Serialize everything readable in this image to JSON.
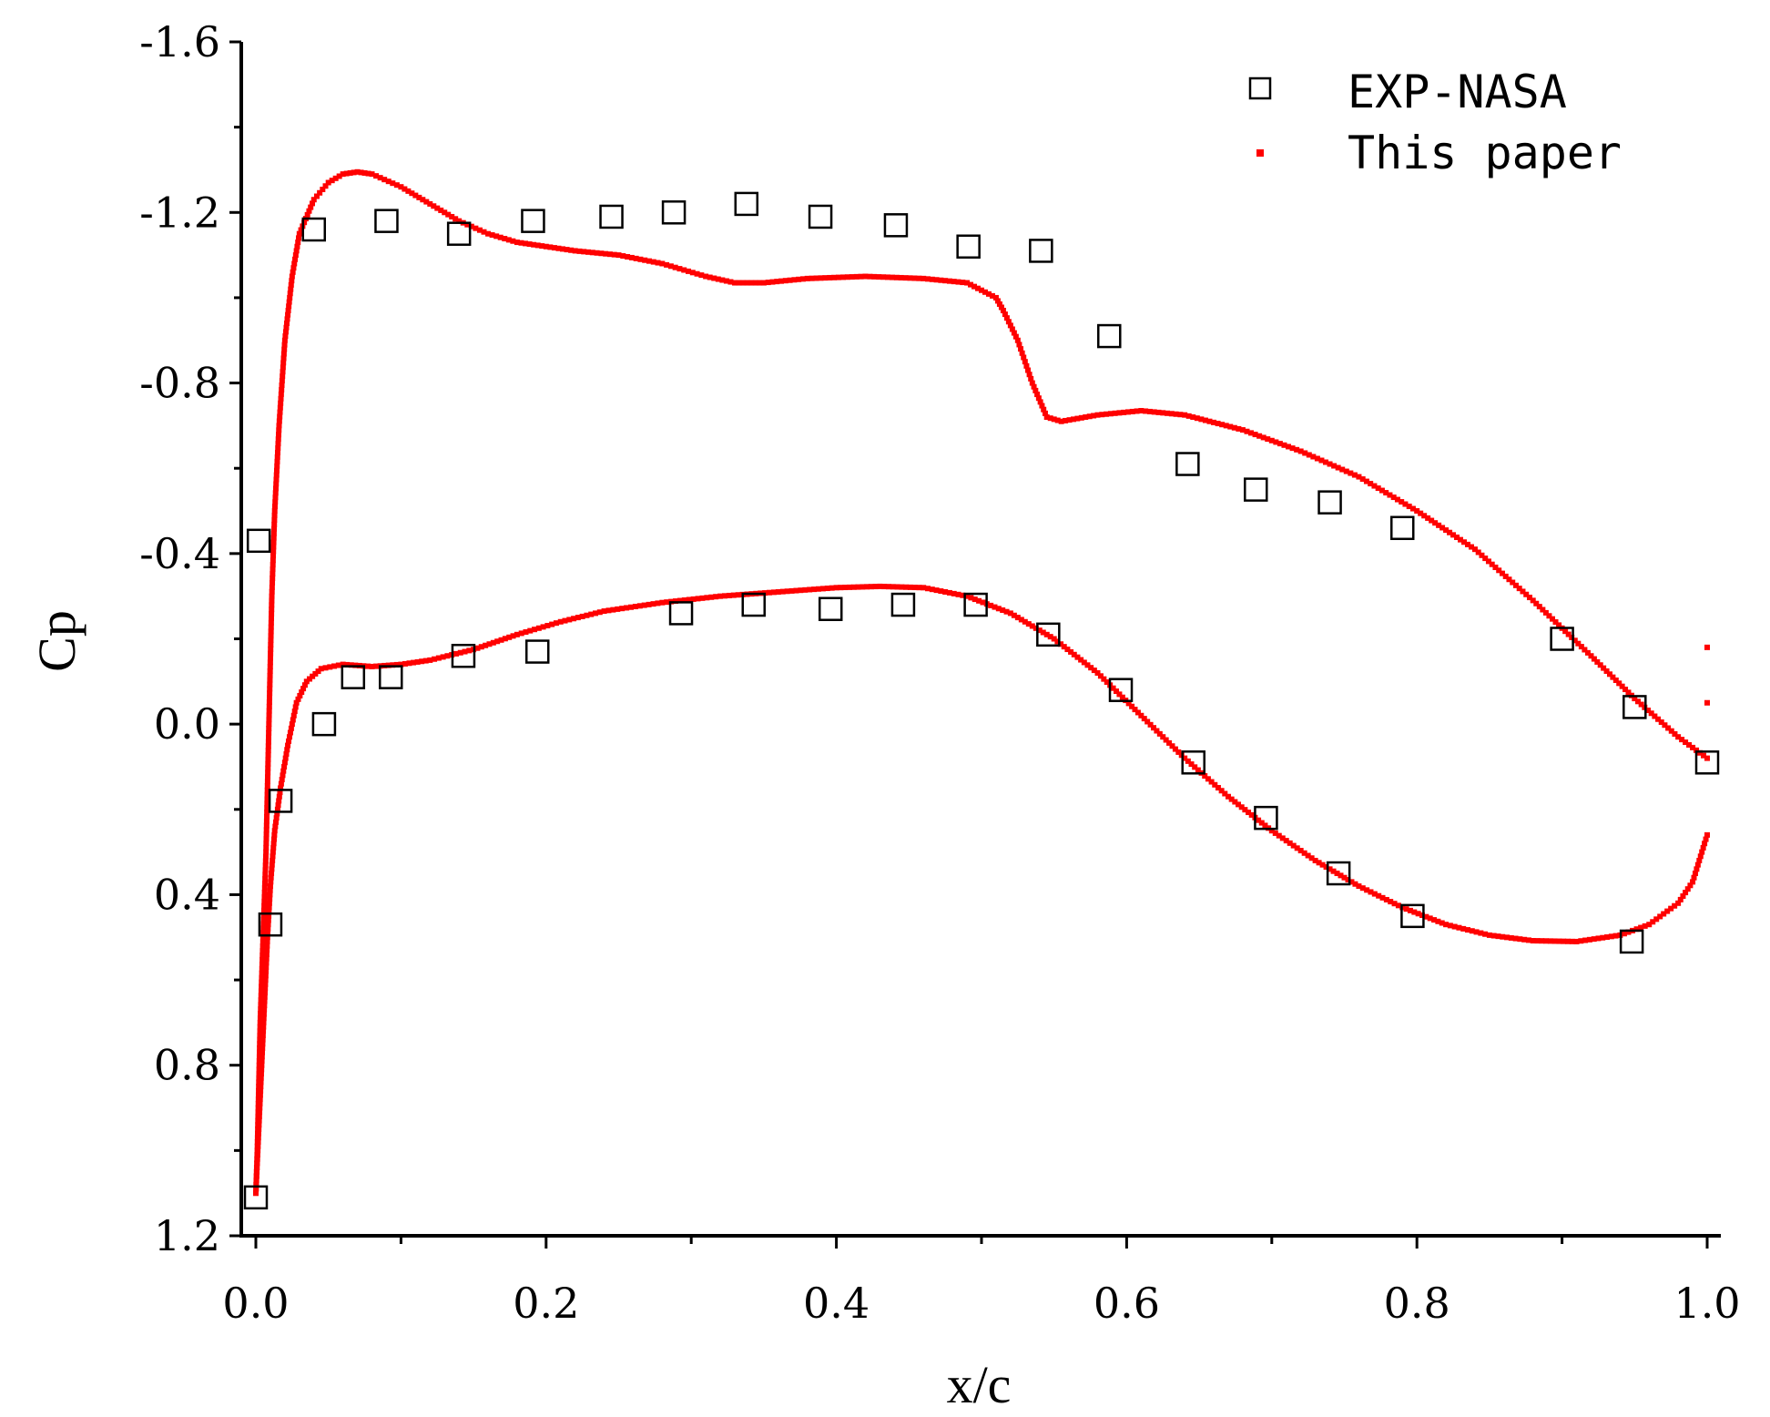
{
  "chart_data": {
    "type": "scatter",
    "title": "",
    "xlabel": "x/c",
    "ylabel": "Cp",
    "xlim": [
      -0.01,
      1.01
    ],
    "ylim": [
      1.2,
      -1.6
    ],
    "x_ticks": [
      0.0,
      0.2,
      0.4,
      0.6,
      0.8,
      1.0
    ],
    "x_tick_labels": [
      "0.0",
      "0.2",
      "0.4",
      "0.6",
      "0.8",
      "1.0"
    ],
    "y_ticks": [
      -1.6,
      -1.2,
      -0.8,
      -0.4,
      0.0,
      0.4,
      0.8,
      1.2
    ],
    "y_tick_labels": [
      "-1.6",
      "-1.2",
      "-0.8",
      "-0.4",
      "0.0",
      "0.4",
      "0.8",
      "1.2"
    ],
    "y_inverted": true,
    "grid": false,
    "legend_position": "top-right",
    "colors": {
      "exp": "#000000",
      "calc": "#ff0000"
    },
    "series": [
      {
        "name": "EXP-NASA",
        "marker": "open-square",
        "upper": [
          [
            0.002,
            -0.43
          ],
          [
            0.04,
            -1.16
          ],
          [
            0.09,
            -1.18
          ],
          [
            0.14,
            -1.15
          ],
          [
            0.191,
            -1.18
          ],
          [
            0.245,
            -1.19
          ],
          [
            0.288,
            -1.2
          ],
          [
            0.338,
            -1.22
          ],
          [
            0.389,
            -1.19
          ],
          [
            0.441,
            -1.17
          ],
          [
            0.491,
            -1.12
          ],
          [
            0.541,
            -1.11
          ],
          [
            0.588,
            -0.91
          ],
          [
            0.642,
            -0.61
          ],
          [
            0.689,
            -0.55
          ],
          [
            0.74,
            -0.52
          ],
          [
            0.79,
            -0.46
          ],
          [
            0.9,
            -0.2
          ],
          [
            0.95,
            -0.04
          ],
          [
            1.0,
            0.09
          ]
        ],
        "lower": [
          [
            0.0,
            1.11
          ],
          [
            0.01,
            0.47
          ],
          [
            0.017,
            0.18
          ],
          [
            0.047,
            0.0
          ],
          [
            0.067,
            -0.11
          ],
          [
            0.093,
            -0.11
          ],
          [
            0.143,
            -0.16
          ],
          [
            0.194,
            -0.17
          ],
          [
            0.293,
            -0.26
          ],
          [
            0.343,
            -0.28
          ],
          [
            0.396,
            -0.27
          ],
          [
            0.446,
            -0.28
          ],
          [
            0.496,
            -0.28
          ],
          [
            0.546,
            -0.21
          ],
          [
            0.596,
            -0.08
          ],
          [
            0.646,
            0.09
          ],
          [
            0.696,
            0.22
          ],
          [
            0.746,
            0.35
          ],
          [
            0.797,
            0.45
          ],
          [
            0.948,
            0.51
          ]
        ]
      },
      {
        "name": "This paper",
        "marker": "small-dot",
        "upper": [
          [
            0.0,
            1.1
          ],
          [
            0.001,
            1.0
          ],
          [
            0.002,
            0.85
          ],
          [
            0.003,
            0.7
          ],
          [
            0.005,
            0.5
          ],
          [
            0.007,
            0.3
          ],
          [
            0.009,
            0.0
          ],
          [
            0.011,
            -0.3
          ],
          [
            0.013,
            -0.5
          ],
          [
            0.016,
            -0.7
          ],
          [
            0.02,
            -0.9
          ],
          [
            0.025,
            -1.05
          ],
          [
            0.03,
            -1.15
          ],
          [
            0.04,
            -1.23
          ],
          [
            0.05,
            -1.27
          ],
          [
            0.06,
            -1.29
          ],
          [
            0.07,
            -1.295
          ],
          [
            0.08,
            -1.29
          ],
          [
            0.1,
            -1.26
          ],
          [
            0.12,
            -1.22
          ],
          [
            0.14,
            -1.18
          ],
          [
            0.16,
            -1.15
          ],
          [
            0.18,
            -1.13
          ],
          [
            0.2,
            -1.12
          ],
          [
            0.22,
            -1.11
          ],
          [
            0.25,
            -1.1
          ],
          [
            0.28,
            -1.08
          ],
          [
            0.31,
            -1.05
          ],
          [
            0.33,
            -1.035
          ],
          [
            0.35,
            -1.035
          ],
          [
            0.38,
            -1.045
          ],
          [
            0.42,
            -1.05
          ],
          [
            0.46,
            -1.045
          ],
          [
            0.49,
            -1.035
          ],
          [
            0.51,
            -1.0
          ],
          [
            0.515,
            -0.97
          ],
          [
            0.525,
            -0.9
          ],
          [
            0.535,
            -0.8
          ],
          [
            0.545,
            -0.72
          ],
          [
            0.555,
            -0.71
          ],
          [
            0.58,
            -0.725
          ],
          [
            0.61,
            -0.735
          ],
          [
            0.64,
            -0.725
          ],
          [
            0.68,
            -0.69
          ],
          [
            0.72,
            -0.64
          ],
          [
            0.76,
            -0.58
          ],
          [
            0.8,
            -0.5
          ],
          [
            0.84,
            -0.41
          ],
          [
            0.88,
            -0.29
          ],
          [
            0.92,
            -0.16
          ],
          [
            0.95,
            -0.06
          ],
          [
            0.98,
            0.03
          ],
          [
            1.0,
            0.08
          ]
        ],
        "lower": [
          [
            0.0,
            1.1
          ],
          [
            0.002,
            0.95
          ],
          [
            0.004,
            0.8
          ],
          [
            0.006,
            0.65
          ],
          [
            0.008,
            0.5
          ],
          [
            0.01,
            0.38
          ],
          [
            0.013,
            0.25
          ],
          [
            0.017,
            0.15
          ],
          [
            0.022,
            0.05
          ],
          [
            0.028,
            -0.05
          ],
          [
            0.035,
            -0.1
          ],
          [
            0.045,
            -0.13
          ],
          [
            0.06,
            -0.14
          ],
          [
            0.08,
            -0.135
          ],
          [
            0.1,
            -0.14
          ],
          [
            0.12,
            -0.15
          ],
          [
            0.15,
            -0.175
          ],
          [
            0.18,
            -0.21
          ],
          [
            0.21,
            -0.24
          ],
          [
            0.24,
            -0.265
          ],
          [
            0.28,
            -0.285
          ],
          [
            0.32,
            -0.3
          ],
          [
            0.36,
            -0.31
          ],
          [
            0.4,
            -0.32
          ],
          [
            0.43,
            -0.323
          ],
          [
            0.46,
            -0.32
          ],
          [
            0.49,
            -0.3
          ],
          [
            0.52,
            -0.26
          ],
          [
            0.55,
            -0.2
          ],
          [
            0.58,
            -0.12
          ],
          [
            0.61,
            -0.02
          ],
          [
            0.64,
            0.08
          ],
          [
            0.67,
            0.17
          ],
          [
            0.7,
            0.25
          ],
          [
            0.73,
            0.32
          ],
          [
            0.76,
            0.38
          ],
          [
            0.79,
            0.43
          ],
          [
            0.82,
            0.47
          ],
          [
            0.85,
            0.495
          ],
          [
            0.88,
            0.508
          ],
          [
            0.91,
            0.51
          ],
          [
            0.94,
            0.495
          ],
          [
            0.96,
            0.47
          ],
          [
            0.98,
            0.42
          ],
          [
            0.99,
            0.37
          ],
          [
            1.0,
            0.26
          ]
        ],
        "te_points": [
          [
            1.0,
            -0.18
          ],
          [
            1.0,
            -0.05
          ]
        ]
      }
    ]
  }
}
